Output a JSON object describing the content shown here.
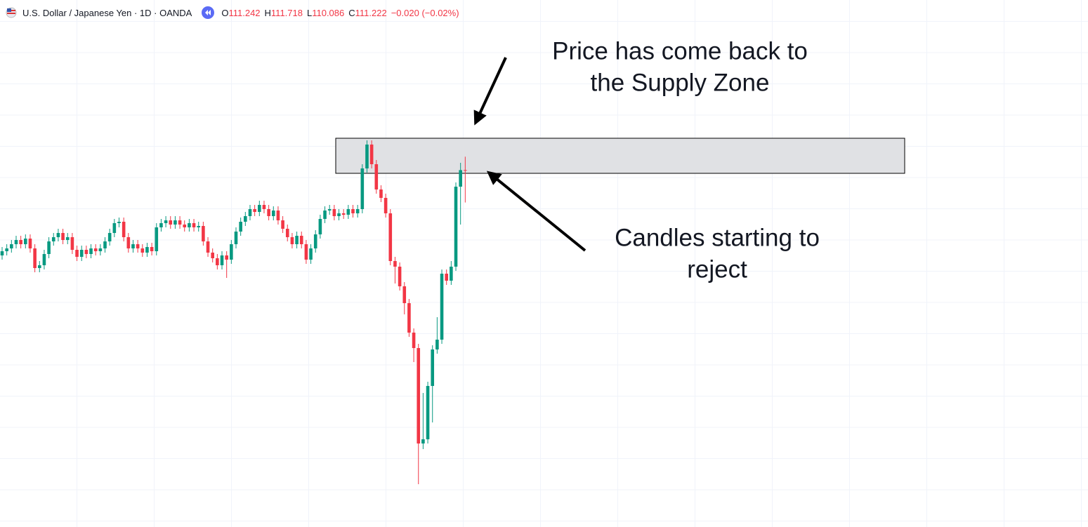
{
  "chart_data": {
    "type": "candlestick",
    "title": "U.S. Dollar / Japanese Yen · 1D · OANDA",
    "ohlc_labels": [
      "O",
      "H",
      "L",
      "C"
    ],
    "change": "−0.020 (−0.02%)",
    "up_color": "#089981",
    "down_color": "#f23645",
    "ylim": [
      98.525,
      116.55
    ],
    "zone": [
      111.125,
      112.375
    ],
    "zone_color": "#e0e1e4",
    "annotations": [
      {
        "lines": [
          "Price has come back to",
          "the Supply Zone"
        ]
      },
      {
        "lines": [
          "Candles starting to",
          "reject"
        ]
      }
    ],
    "open": [
      108.2,
      108.35,
      108.45,
      108.6,
      108.75,
      108.6,
      108.8,
      108.45,
      107.75,
      107.85,
      108.25,
      108.7,
      108.85,
      109.0,
      108.75,
      108.85,
      108.4,
      108.15,
      108.4,
      108.25,
      108.45,
      108.35,
      108.45,
      108.7,
      109.0,
      109.35,
      109.4,
      108.85,
      108.45,
      108.6,
      108.45,
      108.3,
      108.5,
      108.35,
      109.2,
      109.35,
      109.45,
      109.3,
      109.45,
      109.3,
      109.2,
      109.35,
      109.2,
      109.25,
      108.7,
      108.3,
      108.1,
      107.85,
      108.2,
      108.05,
      108.6,
      109.05,
      109.4,
      109.6,
      109.85,
      109.75,
      110.0,
      109.85,
      109.6,
      109.8,
      109.45,
      109.15,
      108.85,
      108.6,
      108.9,
      108.6,
      108.05,
      108.45,
      108.95,
      109.5,
      109.8,
      109.85,
      109.6,
      109.7,
      109.65,
      109.85,
      109.7,
      109.85,
      111.3,
      112.15,
      111.45,
      110.55,
      110.25,
      109.7,
      108.0,
      107.8,
      107.1,
      106.5,
      105.45,
      104.9,
      101.5,
      101.65,
      103.55,
      104.85,
      105.2,
      107.55,
      107.3,
      107.8,
      110.65,
      111.242
    ],
    "high": [
      108.5,
      108.6,
      108.75,
      108.9,
      108.9,
      108.95,
      108.95,
      108.6,
      108.0,
      108.4,
      108.85,
      109.0,
      109.15,
      109.15,
      109.0,
      109.0,
      108.55,
      108.55,
      108.55,
      108.6,
      108.6,
      108.6,
      108.85,
      109.15,
      109.5,
      109.55,
      109.55,
      109.0,
      108.75,
      108.75,
      108.6,
      108.65,
      108.65,
      109.35,
      109.5,
      109.6,
      109.6,
      109.6,
      109.6,
      109.45,
      109.5,
      109.5,
      109.4,
      109.4,
      108.85,
      108.45,
      108.25,
      108.35,
      108.35,
      108.75,
      109.2,
      109.55,
      109.75,
      110.0,
      110.0,
      110.15,
      110.15,
      110.0,
      109.95,
      109.95,
      109.6,
      109.3,
      109.0,
      109.05,
      109.05,
      108.75,
      108.6,
      109.1,
      109.65,
      109.95,
      110.0,
      110.0,
      109.85,
      109.85,
      110.0,
      110.0,
      110.0,
      111.45,
      112.3,
      112.3,
      111.6,
      110.7,
      110.4,
      109.85,
      108.15,
      107.95,
      107.25,
      106.65,
      105.6,
      105.05,
      103.3,
      103.7,
      105.0,
      106.0,
      107.7,
      107.7,
      108.0,
      110.8,
      111.5,
      111.718
    ],
    "low": [
      108.05,
      108.2,
      108.3,
      108.45,
      108.45,
      108.45,
      108.3,
      107.6,
      107.6,
      107.7,
      108.1,
      108.55,
      108.7,
      108.6,
      108.6,
      108.25,
      108.0,
      108.0,
      108.1,
      108.1,
      108.2,
      108.2,
      108.3,
      108.55,
      108.85,
      109.2,
      108.7,
      108.3,
      108.3,
      108.3,
      108.15,
      108.15,
      108.2,
      108.2,
      109.05,
      109.2,
      109.15,
      109.15,
      109.15,
      109.05,
      109.05,
      109.05,
      109.05,
      108.55,
      108.15,
      107.95,
      107.7,
      107.7,
      107.4,
      107.9,
      108.45,
      108.9,
      109.25,
      109.45,
      109.6,
      109.6,
      109.7,
      109.45,
      109.45,
      109.3,
      109.0,
      108.7,
      108.45,
      108.45,
      108.45,
      107.9,
      107.9,
      108.3,
      108.8,
      109.35,
      109.65,
      109.45,
      109.45,
      109.5,
      109.5,
      109.55,
      109.55,
      109.7,
      111.15,
      111.3,
      110.4,
      110.1,
      109.55,
      107.85,
      107.2,
      106.95,
      106.1,
      105.3,
      104.4,
      100.05,
      101.3,
      101.5,
      102.25,
      104.7,
      105.05,
      107.15,
      107.15,
      107.65,
      109.3,
      110.086
    ],
    "close": [
      108.35,
      108.45,
      108.6,
      108.75,
      108.6,
      108.8,
      108.45,
      107.75,
      107.85,
      108.25,
      108.7,
      108.85,
      109.0,
      108.75,
      108.85,
      108.4,
      108.15,
      108.4,
      108.25,
      108.45,
      108.35,
      108.45,
      108.7,
      109.0,
      109.35,
      109.4,
      108.85,
      108.45,
      108.6,
      108.45,
      108.3,
      108.5,
      108.35,
      109.2,
      109.35,
      109.45,
      109.3,
      109.45,
      109.3,
      109.2,
      109.35,
      109.2,
      109.25,
      108.7,
      108.3,
      108.1,
      107.85,
      108.2,
      108.05,
      108.6,
      109.05,
      109.4,
      109.6,
      109.85,
      109.75,
      110.0,
      109.85,
      109.6,
      109.8,
      109.45,
      109.15,
      108.85,
      108.6,
      108.9,
      108.6,
      108.05,
      108.45,
      108.95,
      109.5,
      109.8,
      109.85,
      109.6,
      109.7,
      109.65,
      109.85,
      109.7,
      109.85,
      111.3,
      112.15,
      111.45,
      110.55,
      110.25,
      109.7,
      108.0,
      107.8,
      107.1,
      106.5,
      105.45,
      104.9,
      101.5,
      101.65,
      103.55,
      104.85,
      105.2,
      107.55,
      107.3,
      107.8,
      110.65,
      111.24,
      111.222
    ]
  }
}
